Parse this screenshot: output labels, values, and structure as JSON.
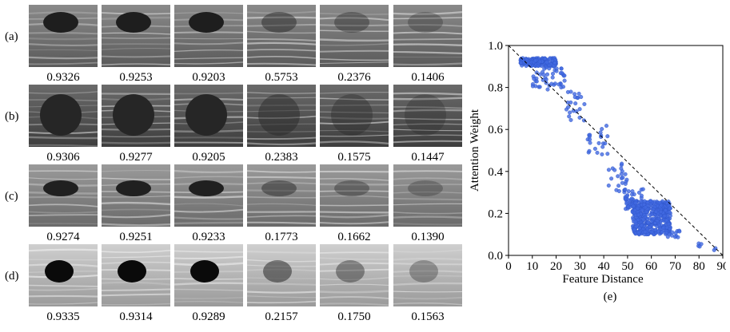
{
  "rows": [
    {
      "label": "(a)",
      "scores": [
        "0.9326",
        "0.9253",
        "0.9203",
        "0.5753",
        "0.2376",
        "0.1406"
      ]
    },
    {
      "label": "(b)",
      "scores": [
        "0.9306",
        "0.9277",
        "0.9205",
        "0.2383",
        "0.1575",
        "0.1447"
      ]
    },
    {
      "label": "(c)",
      "scores": [
        "0.9274",
        "0.9251",
        "0.9233",
        "0.1773",
        "0.1662",
        "0.1390"
      ]
    },
    {
      "label": "(d)",
      "scores": [
        "0.9335",
        "0.9314",
        "0.9289",
        "0.2157",
        "0.1750",
        "0.1563"
      ]
    }
  ],
  "panel_caption": "(e)",
  "chart_data": {
    "type": "scatter",
    "xlabel": "Feature Distance",
    "ylabel": "Attention Weight",
    "xlim": [
      0,
      90
    ],
    "ylim": [
      0,
      1.0
    ],
    "x_ticks": [
      "0",
      "10",
      "20",
      "30",
      "40",
      "50",
      "60",
      "70",
      "80",
      "90"
    ],
    "y_ticks": [
      "0.0",
      "0.2",
      "0.4",
      "0.6",
      "0.8",
      "1.0"
    ],
    "point_color": "#4169e1",
    "reference_line": {
      "x": [
        0,
        90
      ],
      "y": [
        1.0,
        0.0
      ],
      "style": "dashed"
    },
    "clusters": [
      {
        "x": [
          5,
          20
        ],
        "y": [
          0.9,
          0.94
        ],
        "n": 160
      },
      {
        "x": [
          10,
          24
        ],
        "y": [
          0.79,
          0.9
        ],
        "n": 45
      },
      {
        "x": [
          24,
          32
        ],
        "y": [
          0.64,
          0.78
        ],
        "n": 22
      },
      {
        "x": [
          33,
          42
        ],
        "y": [
          0.48,
          0.62
        ],
        "n": 22
      },
      {
        "x": [
          42,
          50
        ],
        "y": [
          0.3,
          0.44
        ],
        "n": 25
      },
      {
        "x": [
          49,
          57
        ],
        "y": [
          0.22,
          0.32
        ],
        "n": 45
      },
      {
        "x": [
          52,
          68
        ],
        "y": [
          0.1,
          0.26
        ],
        "n": 420
      },
      {
        "x": [
          66,
          72
        ],
        "y": [
          0.08,
          0.13
        ],
        "n": 14
      },
      {
        "x": [
          78,
          82
        ],
        "y": [
          0.04,
          0.06
        ],
        "n": 4
      },
      {
        "x": [
          86,
          89
        ],
        "y": [
          0.02,
          0.04
        ],
        "n": 2
      }
    ]
  }
}
